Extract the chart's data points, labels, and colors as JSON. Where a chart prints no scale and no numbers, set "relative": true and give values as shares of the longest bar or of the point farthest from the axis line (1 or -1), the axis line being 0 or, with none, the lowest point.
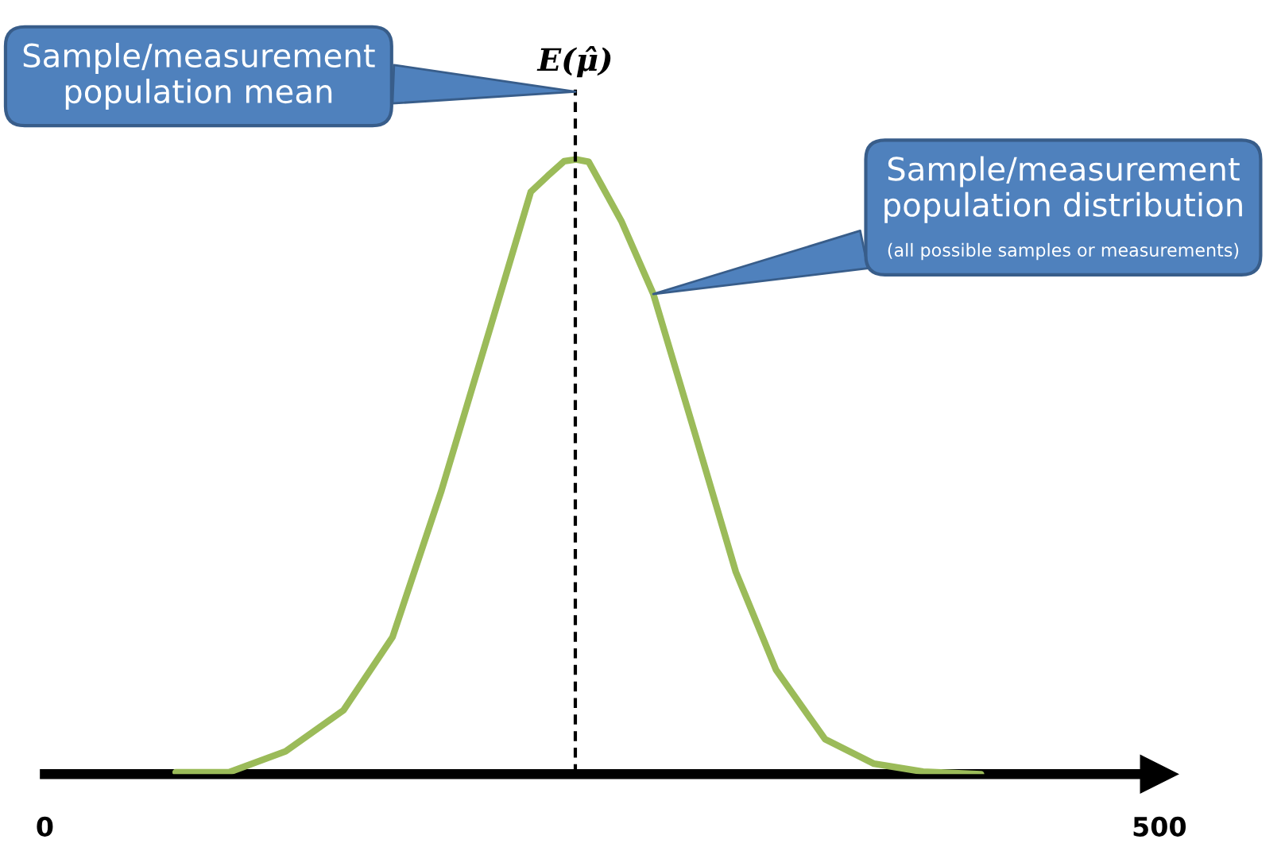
{
  "chart_data": {
    "type": "line",
    "relative": true,
    "x": [
      58.7,
      82.6,
      108,
      134,
      156,
      178,
      200,
      218,
      225.6,
      233,
      238.4,
      244,
      258.6,
      273,
      291.6,
      310,
      328,
      350,
      372,
      394,
      420
    ],
    "series": [
      {
        "color": "#9bbb59",
        "values": [
          0.003,
          0.003,
          0.037,
          0.104,
          0.223,
          0.462,
          0.728,
          0.947,
          0.973,
          0.997,
          1.0,
          0.996,
          0.9,
          0.781,
          0.555,
          0.329,
          0.17,
          0.057,
          0.017,
          0.004,
          0.0
        ]
      }
    ],
    "xlim": [
      0,
      500
    ],
    "xticks": [
      0,
      500
    ],
    "ref_lines": [
      {
        "axis": "x",
        "value": 238,
        "label": "E(μ̂)",
        "color": "#000000",
        "line_style": "dashed"
      }
    ],
    "annotations": [
      {
        "text": "Sample/measurement\npopulation mean",
        "x": 238,
        "y": 1.11
      },
      {
        "text": "Sample/measurement\npopulation distribution",
        "x": 273,
        "y": 0.781
      },
      "(all possible samples or measurements)"
    ],
    "grid": false,
    "legend": false,
    "marker": "none",
    "line_style": "solid"
  }
}
